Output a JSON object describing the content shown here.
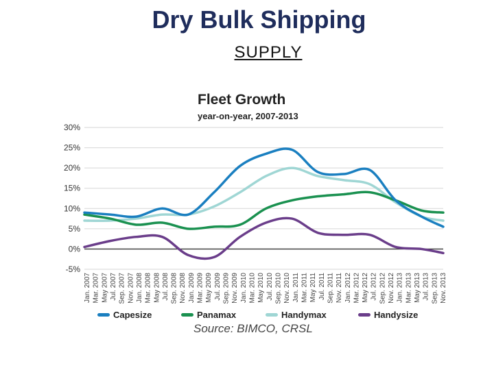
{
  "slide": {
    "title": "Dry Bulk Shipping",
    "subtitle": "SUPPLY"
  },
  "chart_data": {
    "type": "line",
    "title": "Fleet Growth",
    "subtitle": "year-on-year, 2007-2013",
    "source": "Source: BIMCO, CRSL",
    "xlabel": "",
    "ylabel": "",
    "ylim": [
      -5,
      30
    ],
    "yticks": [
      30,
      25,
      20,
      15,
      10,
      5,
      0,
      -5
    ],
    "ytick_labels": [
      "30%",
      "25%",
      "20%",
      "15%",
      "10%",
      "5%",
      "0%",
      "-5%"
    ],
    "x_tick_labels": [
      "Jan. 2007",
      "Mar. 2007",
      "May 2007",
      "Jul. 2007",
      "Sep. 2007",
      "Nov. 2007",
      "Jan. 2008",
      "Mar. 2008",
      "May 2008",
      "Jul. 2008",
      "Sep. 2008",
      "Nov. 2008",
      "Jan. 2009",
      "Mar. 2009",
      "May 2009",
      "Jul. 2009",
      "Sep. 2009",
      "Nov. 2009",
      "Jan. 2010",
      "Mar. 2010",
      "May 2010",
      "Jul. 2010",
      "Sep. 2010",
      "Nov. 2010",
      "Jan. 2011",
      "Mar. 2011",
      "May 2011",
      "Jul. 2011",
      "Sep. 2011",
      "Nov. 2011",
      "Jan. 2012",
      "Mar. 2012",
      "May 2012",
      "Jul. 2012",
      "Sep. 2012",
      "Nov. 2012",
      "Jan. 2013",
      "Mar. 2013",
      "May 2013",
      "Jul. 2013",
      "Sep. 2013",
      "Nov. 2013"
    ],
    "x": [
      0,
      6,
      12,
      18,
      24,
      30,
      36,
      42,
      48,
      54,
      60,
      66,
      72,
      78,
      83
    ],
    "series": [
      {
        "name": "Capesize",
        "color": "#1a7fc0",
        "values": [
          9.0,
          8.5,
          8.0,
          10.0,
          8.5,
          14.0,
          20.5,
          23.5,
          24.5,
          19.0,
          18.5,
          19.5,
          12.0,
          8.0,
          5.5
        ]
      },
      {
        "name": "Panamax",
        "color": "#1a9150",
        "values": [
          8.5,
          7.5,
          6.0,
          6.5,
          5.0,
          5.5,
          6.0,
          10.0,
          12.0,
          13.0,
          13.5,
          14.0,
          12.0,
          9.5,
          9.0
        ]
      },
      {
        "name": "Handymax",
        "color": "#9fd6d4",
        "values": [
          7.0,
          7.0,
          7.5,
          8.5,
          8.5,
          10.5,
          14.0,
          18.0,
          20.0,
          18.0,
          17.0,
          16.0,
          11.5,
          8.0,
          7.0
        ]
      },
      {
        "name": "Handysize",
        "color": "#6a3d8a",
        "values": [
          0.5,
          2.0,
          3.0,
          3.0,
          -1.5,
          -2.0,
          3.0,
          6.5,
          7.5,
          4.0,
          3.5,
          3.5,
          0.5,
          0.0,
          -1.0
        ]
      }
    ]
  }
}
